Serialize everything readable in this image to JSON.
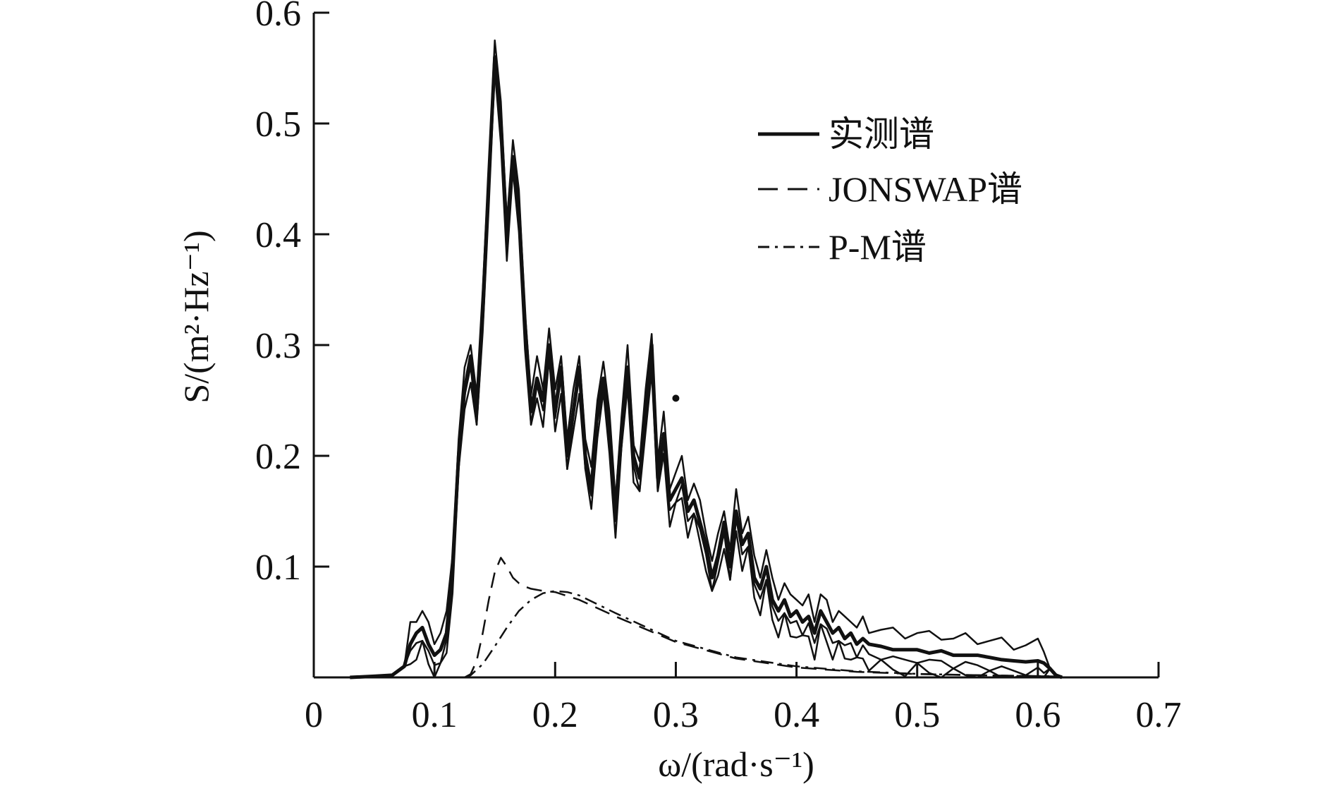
{
  "chart_data": {
    "type": "line",
    "title": "",
    "xlabel": "ω/(rad·s⁻¹)",
    "ylabel": "S/(m²·Hz⁻¹)",
    "xlim": [
      0,
      0.7
    ],
    "ylim": [
      0,
      0.6
    ],
    "x_ticks": [
      "0",
      "0.1",
      "0.2",
      "0.3",
      "0.4",
      "0.5",
      "0.6",
      "0.7"
    ],
    "y_ticks": [
      "0.1",
      "0.2",
      "0.3",
      "0.4",
      "0.5",
      "0.6"
    ],
    "grid": false,
    "legend_position": "top-right",
    "series": [
      {
        "name": "实测谱",
        "style": "solid",
        "color": "#111111",
        "x": [
          0.03,
          0.05,
          0.065,
          0.075,
          0.08,
          0.085,
          0.09,
          0.095,
          0.1,
          0.105,
          0.11,
          0.115,
          0.12,
          0.125,
          0.13,
          0.135,
          0.14,
          0.145,
          0.15,
          0.155,
          0.16,
          0.165,
          0.17,
          0.175,
          0.18,
          0.185,
          0.19,
          0.195,
          0.2,
          0.205,
          0.21,
          0.215,
          0.22,
          0.225,
          0.23,
          0.235,
          0.24,
          0.245,
          0.25,
          0.255,
          0.26,
          0.265,
          0.27,
          0.275,
          0.28,
          0.285,
          0.29,
          0.295,
          0.3,
          0.305,
          0.31,
          0.315,
          0.32,
          0.325,
          0.33,
          0.335,
          0.34,
          0.345,
          0.35,
          0.355,
          0.36,
          0.365,
          0.37,
          0.375,
          0.38,
          0.385,
          0.39,
          0.395,
          0.4,
          0.405,
          0.41,
          0.415,
          0.42,
          0.425,
          0.43,
          0.435,
          0.44,
          0.445,
          0.45,
          0.455,
          0.46,
          0.47,
          0.48,
          0.49,
          0.5,
          0.51,
          0.52,
          0.53,
          0.54,
          0.55,
          0.56,
          0.57,
          0.58,
          0.59,
          0.6,
          0.605,
          0.61,
          0.615,
          0.62
        ],
        "values": [
          0,
          0.001,
          0.002,
          0.01,
          0.03,
          0.04,
          0.045,
          0.03,
          0.02,
          0.025,
          0.04,
          0.1,
          0.2,
          0.26,
          0.29,
          0.24,
          0.33,
          0.45,
          0.56,
          0.5,
          0.4,
          0.47,
          0.42,
          0.32,
          0.24,
          0.27,
          0.25,
          0.3,
          0.24,
          0.28,
          0.2,
          0.24,
          0.28,
          0.2,
          0.17,
          0.24,
          0.27,
          0.22,
          0.15,
          0.22,
          0.28,
          0.2,
          0.18,
          0.24,
          0.3,
          0.18,
          0.22,
          0.16,
          0.17,
          0.18,
          0.15,
          0.16,
          0.14,
          0.12,
          0.09,
          0.11,
          0.14,
          0.1,
          0.15,
          0.12,
          0.13,
          0.09,
          0.08,
          0.1,
          0.07,
          0.06,
          0.07,
          0.055,
          0.06,
          0.05,
          0.055,
          0.04,
          0.06,
          0.05,
          0.04,
          0.045,
          0.035,
          0.04,
          0.03,
          0.035,
          0.03,
          0.028,
          0.025,
          0.025,
          0.025,
          0.022,
          0.024,
          0.02,
          0.02,
          0.02,
          0.018,
          0.016,
          0.015,
          0.014,
          0.015,
          0.013,
          0.008,
          0.002,
          0
        ]
      },
      {
        "name": "JONSWAP谱",
        "style": "dashed",
        "color": "#111111",
        "x": [
          0.125,
          0.13,
          0.135,
          0.14,
          0.145,
          0.15,
          0.155,
          0.16,
          0.165,
          0.17,
          0.175,
          0.18,
          0.19,
          0.2,
          0.22,
          0.25,
          0.3,
          0.35,
          0.4,
          0.45,
          0.5,
          0.55,
          0.6,
          0.62
        ],
        "values": [
          0,
          0.003,
          0.015,
          0.04,
          0.07,
          0.095,
          0.108,
          0.1,
          0.09,
          0.085,
          0.082,
          0.08,
          0.078,
          0.077,
          0.07,
          0.055,
          0.032,
          0.017,
          0.009,
          0.005,
          0.003,
          0.002,
          0.001,
          0.0008
        ]
      },
      {
        "name": "P-M谱",
        "style": "dash-dot",
        "color": "#111111",
        "x": [
          0.125,
          0.13,
          0.14,
          0.15,
          0.16,
          0.17,
          0.18,
          0.19,
          0.2,
          0.21,
          0.22,
          0.25,
          0.3,
          0.35,
          0.4,
          0.45,
          0.5,
          0.55,
          0.6,
          0.62
        ],
        "values": [
          0,
          0.002,
          0.012,
          0.028,
          0.045,
          0.06,
          0.07,
          0.076,
          0.078,
          0.077,
          0.074,
          0.058,
          0.033,
          0.018,
          0.01,
          0.0055,
          0.0032,
          0.002,
          0.0012,
          0.001
        ]
      }
    ],
    "annotations": [
      {
        "text": "•",
        "x": 0.3,
        "y": 0.252
      }
    ]
  }
}
